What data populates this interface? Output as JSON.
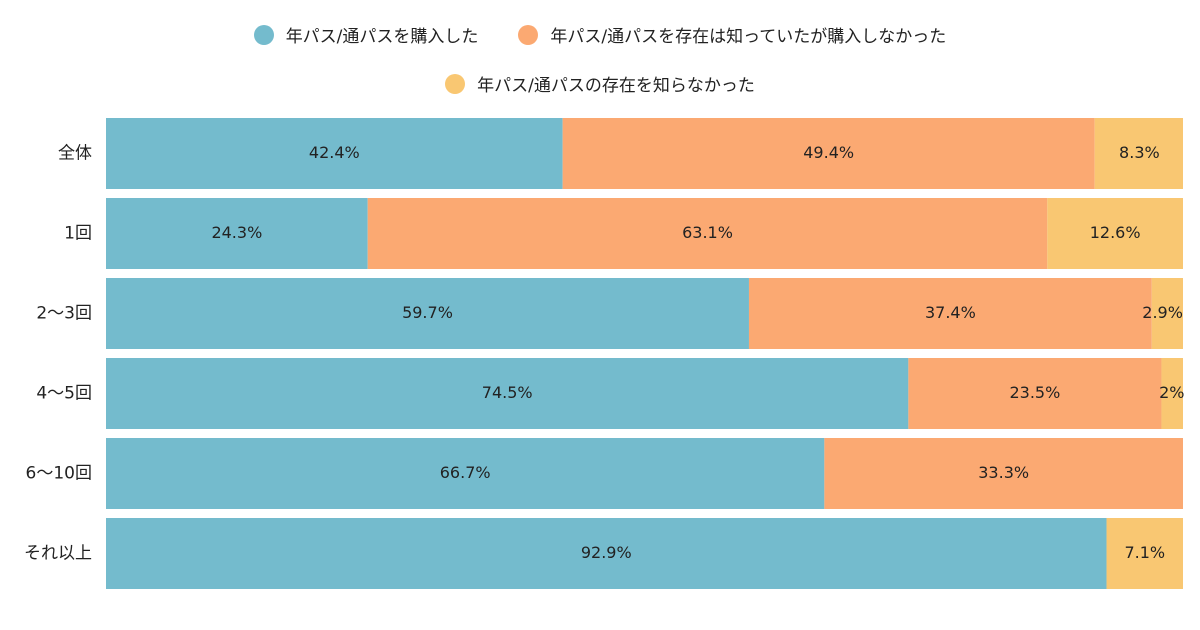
{
  "colors": {
    "purchased": "#74BBCD",
    "aware_not_purchased": "#FBA972",
    "not_aware": "#F9C772"
  },
  "chart_data": {
    "type": "bar",
    "orientation": "horizontal",
    "stacked": true,
    "categories": [
      "全体",
      "1回",
      "2〜3回",
      "4〜5回",
      "6〜10回",
      "それ以上"
    ],
    "series": [
      {
        "name": "年パス/通パスを購入した",
        "values": [
          42.4,
          24.3,
          59.7,
          74.5,
          66.7,
          92.9
        ]
      },
      {
        "name": "年パス/通パスを存在は知っていたが購入しなかった",
        "values": [
          49.4,
          63.1,
          37.4,
          23.5,
          33.3,
          0
        ]
      },
      {
        "name": "年パス/通パスの存在を知らなかった",
        "values": [
          8.3,
          12.6,
          2.9,
          2,
          0,
          7.1
        ]
      }
    ],
    "value_labels": [
      [
        "42.4%",
        "49.4%",
        "8.3%"
      ],
      [
        "24.3%",
        "63.1%",
        "12.6%"
      ],
      [
        "59.7%",
        "37.4%",
        "2.9%"
      ],
      [
        "74.5%",
        "23.5%",
        "2%"
      ],
      [
        "66.7%",
        "33.3%",
        ""
      ],
      [
        "92.9%",
        "",
        "7.1%"
      ]
    ],
    "xlim": [
      0,
      100
    ],
    "legend_position": "top",
    "grid": false
  }
}
